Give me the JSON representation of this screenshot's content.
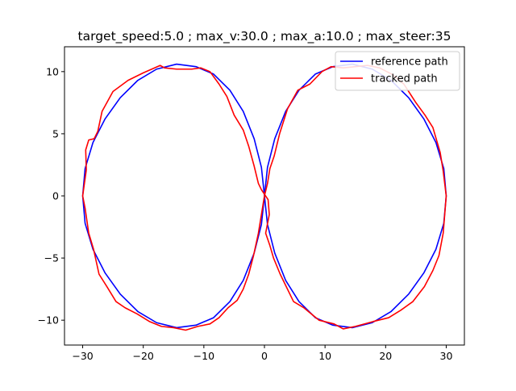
{
  "chart_data": {
    "type": "line",
    "title": "target_speed:5.0 ; max_v:30.0 ; max_a:10.0 ; max_steer:35",
    "xlabel": "",
    "ylabel": "",
    "xlim": [
      -33.0,
      33.0
    ],
    "ylim": [
      -12.0,
      12.0
    ],
    "xticks": [
      -30,
      -20,
      -10,
      0,
      10,
      20,
      30
    ],
    "xtick_labels": [
      "−30",
      "−20",
      "−10",
      "0",
      "10",
      "20",
      "30"
    ],
    "yticks": [
      -10,
      -5,
      0,
      5,
      10
    ],
    "ytick_labels": [
      "−10",
      "−5",
      "0",
      "5",
      "10"
    ],
    "grid": false,
    "legend_position": "upper right",
    "series": [
      {
        "name": "reference path",
        "color": "#0000ff",
        "x": [
          -30.0,
          -29.6,
          -28.3,
          -26.3,
          -23.8,
          -20.9,
          -17.8,
          -14.5,
          -11.3,
          -8.4,
          -5.7,
          -3.5,
          -1.7,
          -0.5,
          0.0,
          0.5,
          1.7,
          3.5,
          5.7,
          8.4,
          11.3,
          14.5,
          17.8,
          20.9,
          23.8,
          26.3,
          28.3,
          29.6,
          30.0,
          29.6,
          28.3,
          26.3,
          23.8,
          20.9,
          17.8,
          14.5,
          11.3,
          8.4,
          5.7,
          3.5,
          1.7,
          0.5,
          0.0,
          -0.5,
          -1.7,
          -3.5,
          -5.7,
          -8.4,
          -11.3,
          -14.5,
          -17.8,
          -20.9,
          -23.8,
          -26.3,
          -28.3,
          -29.6,
          -30.0
        ],
        "y": [
          0.0,
          2.2,
          4.3,
          6.2,
          7.9,
          9.3,
          10.2,
          10.6,
          10.4,
          9.8,
          8.5,
          6.8,
          4.6,
          2.3,
          0.0,
          -2.3,
          -4.6,
          -6.8,
          -8.5,
          -9.8,
          -10.4,
          -10.6,
          -10.2,
          -9.3,
          -7.9,
          -6.2,
          -4.3,
          -2.2,
          0.0,
          2.2,
          4.3,
          6.2,
          7.9,
          9.3,
          10.2,
          10.6,
          10.4,
          9.8,
          8.5,
          6.8,
          4.6,
          2.3,
          0.0,
          -2.3,
          -4.6,
          -6.8,
          -8.5,
          -9.8,
          -10.4,
          -10.6,
          -10.2,
          -9.3,
          -7.9,
          -6.2,
          -4.3,
          -2.2,
          0.0
        ]
      },
      {
        "name": "tracked path",
        "color": "#ff0000",
        "x": [
          -30.0,
          -29.4,
          -29.5,
          -29.0,
          -28.1,
          -27.5,
          -26.8,
          -25.0,
          -22.5,
          -20.0,
          -17.2,
          -16.5,
          -14.5,
          -12.0,
          -10.5,
          -9.0,
          -7.5,
          -6.2,
          -5.0,
          -3.5,
          -2.6,
          -1.7,
          -1.0,
          -0.5,
          0.6,
          0.8,
          0.2,
          0.9,
          1.5,
          2.6,
          3.5,
          4.8,
          6.5,
          9.0,
          11.5,
          13.0,
          15.0,
          18.0,
          20.5,
          22.5,
          24.5,
          26.4,
          27.8,
          28.8,
          29.5,
          30.0,
          29.5,
          29.0,
          27.8,
          26.5,
          25.0,
          23.0,
          21.0,
          19.0,
          17.0,
          15.0,
          13.0,
          11.0,
          9.5,
          7.5,
          5.5,
          3.8,
          2.5,
          1.6,
          0.9,
          0.5,
          0.0,
          -0.5,
          -1.0,
          -1.8,
          -2.6,
          -3.5,
          -4.5,
          -6.0,
          -7.5,
          -9.0,
          -11.0,
          -13.0,
          -15.0,
          -17.0,
          -19.0,
          -21.0,
          -23.0,
          -24.5,
          -26.0,
          -27.3,
          -28.2,
          -29.0,
          -29.3,
          -29.6,
          -30.0
        ],
        "y": [
          0.0,
          2.1,
          3.7,
          4.5,
          4.6,
          5.2,
          6.8,
          8.4,
          9.3,
          9.9,
          10.5,
          10.3,
          10.2,
          10.2,
          10.3,
          10.0,
          9.0,
          8.0,
          6.5,
          5.3,
          4.0,
          2.4,
          1.0,
          0.5,
          -0.3,
          -1.5,
          -3.0,
          -4.0,
          -5.0,
          -6.3,
          -7.2,
          -8.5,
          -9.0,
          -10.0,
          -10.3,
          -10.7,
          -10.5,
          -10.1,
          -9.8,
          -9.2,
          -8.5,
          -7.3,
          -6.0,
          -4.8,
          -3.0,
          0.0,
          2.0,
          3.5,
          5.5,
          6.5,
          7.5,
          9.0,
          9.8,
          10.3,
          10.5,
          10.4,
          10.3,
          10.4,
          10.0,
          9.0,
          8.5,
          7.0,
          5.0,
          3.2,
          2.2,
          1.0,
          0.0,
          -1.5,
          -3.0,
          -4.8,
          -6.3,
          -7.5,
          -8.4,
          -9.0,
          -9.8,
          -10.3,
          -10.5,
          -10.8,
          -10.6,
          -10.5,
          -10.1,
          -9.5,
          -9.0,
          -8.5,
          -7.3,
          -6.3,
          -4.3,
          -3.0,
          -2.0,
          -1.0,
          0.0
        ]
      }
    ]
  }
}
